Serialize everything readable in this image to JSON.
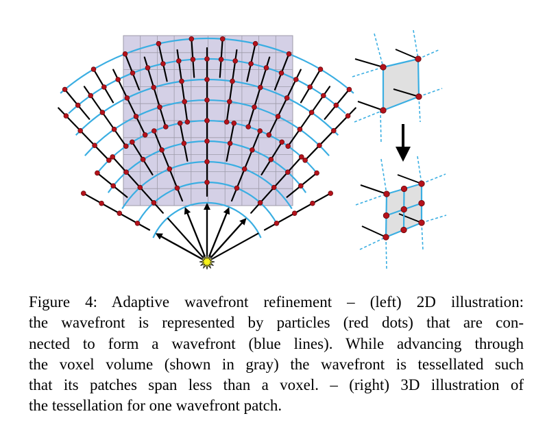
{
  "figure": {
    "colors": {
      "voxel_fill": "#d4d0e6",
      "voxel_grid": "#9c9aa8",
      "wavefront": "#3aaee2",
      "particle": "#b5121b",
      "ray": "#000000",
      "light_source": "#f6f21a",
      "patch_fill": "#e0e0e0"
    }
  },
  "caption": {
    "lines": [
      "Figure 4:  Adaptive wavefront refinement – (left) 2D illustration:",
      "the wavefront is represented by particles (red dots) that are con-",
      "nected to form a wavefront (blue lines).  While advancing through",
      "the voxel volume (shown in gray) the wavefront is tessellated such",
      "that its patches span less than a voxel.  – (right) 3D illustration of",
      "the tessellation for one wavefront patch."
    ]
  }
}
